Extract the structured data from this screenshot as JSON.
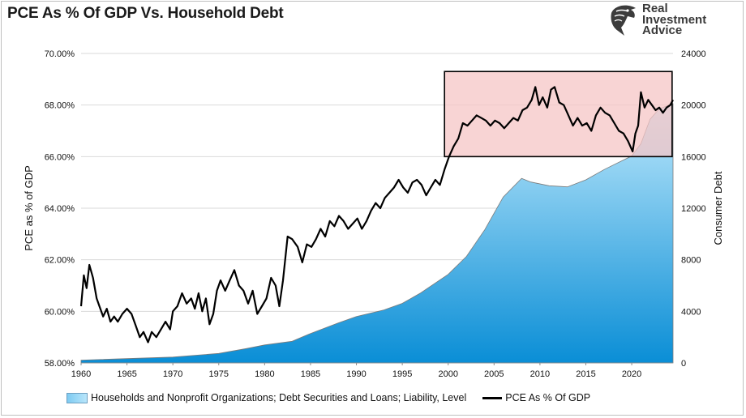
{
  "title": "PCE As % Of GDP Vs. Household Debt",
  "logo": {
    "icon": "eagle-head-icon",
    "lines": [
      "Real",
      "Investment",
      "Advice"
    ]
  },
  "chart_data": {
    "type": "line",
    "title": "PCE As % Of GDP Vs. Household Debt",
    "x_ticks": [
      "1960",
      "1965",
      "1970",
      "1975",
      "1980",
      "1985",
      "1990",
      "1995",
      "2000",
      "2005",
      "2010",
      "2015",
      "2020"
    ],
    "xlim": [
      1960,
      2024.5
    ],
    "left_axis": {
      "label": "PCE as % of GDP",
      "ylim": [
        58,
        70
      ],
      "ticks": [
        "58.00%",
        "60.00%",
        "62.00%",
        "64.00%",
        "66.00%",
        "68.00%",
        "70.00%"
      ],
      "tick_values": [
        58,
        60,
        62,
        64,
        66,
        68,
        70
      ]
    },
    "right_axis": {
      "label": "Consumer Debt",
      "ylim": [
        0,
        24000
      ],
      "ticks": [
        "0",
        "4000",
        "8000",
        "12000",
        "16000",
        "20000",
        "24000"
      ],
      "tick_values": [
        0,
        4000,
        8000,
        12000,
        16000,
        20000,
        24000
      ]
    },
    "grid": "horizontal",
    "legend_position": "bottom",
    "colors": {
      "area_top": "#b9e6fb",
      "area_bottom": "#0a8ed6",
      "line": "#000000",
      "highlight_fill": "#f5c6c6",
      "highlight_stroke": "#000000",
      "grid": "#d9d9d9"
    },
    "series": [
      {
        "name": "Households and Nonprofit Organizations; Debt Securities and Loans; Liability, Level",
        "kind": "area",
        "axis": "right",
        "points": [
          [
            1960,
            216
          ],
          [
            1965,
            331
          ],
          [
            1970,
            455
          ],
          [
            1975,
            734
          ],
          [
            1978,
            1112
          ],
          [
            1980,
            1396
          ],
          [
            1983,
            1680
          ],
          [
            1985,
            2283
          ],
          [
            1988,
            3090
          ],
          [
            1990,
            3602
          ],
          [
            1993,
            4110
          ],
          [
            1995,
            4620
          ],
          [
            1997,
            5430
          ],
          [
            2000,
            6870
          ],
          [
            2002,
            8260
          ],
          [
            2004,
            10350
          ],
          [
            2006,
            12870
          ],
          [
            2008,
            14310
          ],
          [
            2009,
            14030
          ],
          [
            2011,
            13740
          ],
          [
            2013,
            13650
          ],
          [
            2015,
            14200
          ],
          [
            2017,
            15000
          ],
          [
            2019,
            15700
          ],
          [
            2020,
            16050
          ],
          [
            2021,
            17000
          ],
          [
            2022,
            18900
          ],
          [
            2023,
            19700
          ],
          [
            2024.5,
            20100
          ]
        ]
      },
      {
        "name": "PCE As % Of GDP",
        "kind": "line",
        "axis": "left",
        "points": [
          [
            1960,
            60.2
          ],
          [
            1960.3,
            61.4
          ],
          [
            1960.6,
            60.9
          ],
          [
            1960.9,
            61.8
          ],
          [
            1961.3,
            61.3
          ],
          [
            1961.7,
            60.5
          ],
          [
            1962,
            60.2
          ],
          [
            1962.4,
            59.8
          ],
          [
            1962.8,
            60.1
          ],
          [
            1963.2,
            59.6
          ],
          [
            1963.6,
            59.8
          ],
          [
            1964,
            59.6
          ],
          [
            1964.5,
            59.9
          ],
          [
            1965,
            60.1
          ],
          [
            1965.5,
            59.9
          ],
          [
            1966,
            59.4
          ],
          [
            1966.4,
            59.0
          ],
          [
            1966.8,
            59.2
          ],
          [
            1967.3,
            58.8
          ],
          [
            1967.7,
            59.2
          ],
          [
            1968.2,
            59.0
          ],
          [
            1968.7,
            59.3
          ],
          [
            1969.2,
            59.6
          ],
          [
            1969.7,
            59.3
          ],
          [
            1970,
            60.0
          ],
          [
            1970.5,
            60.2
          ],
          [
            1971,
            60.7
          ],
          [
            1971.5,
            60.3
          ],
          [
            1972,
            60.5
          ],
          [
            1972.4,
            60.1
          ],
          [
            1972.8,
            60.7
          ],
          [
            1973.2,
            60.0
          ],
          [
            1973.6,
            60.5
          ],
          [
            1974,
            59.5
          ],
          [
            1974.4,
            59.9
          ],
          [
            1974.8,
            60.8
          ],
          [
            1975.2,
            61.2
          ],
          [
            1975.7,
            60.8
          ],
          [
            1976.2,
            61.2
          ],
          [
            1976.7,
            61.6
          ],
          [
            1977.2,
            61.0
          ],
          [
            1977.7,
            60.8
          ],
          [
            1978.2,
            60.3
          ],
          [
            1978.7,
            60.8
          ],
          [
            1979.2,
            59.9
          ],
          [
            1979.7,
            60.2
          ],
          [
            1980.2,
            60.5
          ],
          [
            1980.7,
            61.3
          ],
          [
            1981.2,
            61.0
          ],
          [
            1981.6,
            60.2
          ],
          [
            1982,
            61.2
          ],
          [
            1982.5,
            62.9
          ],
          [
            1983,
            62.8
          ],
          [
            1983.6,
            62.5
          ],
          [
            1984.1,
            61.9
          ],
          [
            1984.6,
            62.6
          ],
          [
            1985.1,
            62.5
          ],
          [
            1985.6,
            62.8
          ],
          [
            1986.1,
            63.2
          ],
          [
            1986.6,
            62.9
          ],
          [
            1987.1,
            63.5
          ],
          [
            1987.6,
            63.3
          ],
          [
            1988.1,
            63.7
          ],
          [
            1988.6,
            63.5
          ],
          [
            1989.1,
            63.2
          ],
          [
            1989.6,
            63.4
          ],
          [
            1990.1,
            63.6
          ],
          [
            1990.6,
            63.2
          ],
          [
            1991.1,
            63.5
          ],
          [
            1991.6,
            63.9
          ],
          [
            1992.1,
            64.2
          ],
          [
            1992.6,
            64.0
          ],
          [
            1993.1,
            64.4
          ],
          [
            1993.6,
            64.6
          ],
          [
            1994.1,
            64.8
          ],
          [
            1994.6,
            65.1
          ],
          [
            1995.1,
            64.8
          ],
          [
            1995.6,
            64.6
          ],
          [
            1996.1,
            65.0
          ],
          [
            1996.6,
            65.1
          ],
          [
            1997.1,
            64.9
          ],
          [
            1997.6,
            64.5
          ],
          [
            1998.1,
            64.8
          ],
          [
            1998.6,
            65.1
          ],
          [
            1999.1,
            64.9
          ],
          [
            1999.6,
            65.5
          ],
          [
            2000.1,
            66.0
          ],
          [
            2000.6,
            66.4
          ],
          [
            2001.1,
            66.7
          ],
          [
            2001.6,
            67.3
          ],
          [
            2002.1,
            67.2
          ],
          [
            2002.6,
            67.4
          ],
          [
            2003.1,
            67.6
          ],
          [
            2003.6,
            67.5
          ],
          [
            2004.1,
            67.4
          ],
          [
            2004.6,
            67.2
          ],
          [
            2005.1,
            67.4
          ],
          [
            2005.6,
            67.3
          ],
          [
            2006.1,
            67.1
          ],
          [
            2006.6,
            67.3
          ],
          [
            2007.1,
            67.5
          ],
          [
            2007.6,
            67.4
          ],
          [
            2008.1,
            67.8
          ],
          [
            2008.6,
            67.9
          ],
          [
            2009.1,
            68.2
          ],
          [
            2009.5,
            68.7
          ],
          [
            2009.9,
            68.0
          ],
          [
            2010.3,
            68.3
          ],
          [
            2010.8,
            67.9
          ],
          [
            2011.2,
            68.6
          ],
          [
            2011.6,
            68.7
          ],
          [
            2012.1,
            68.1
          ],
          [
            2012.6,
            68.0
          ],
          [
            2013.1,
            67.6
          ],
          [
            2013.6,
            67.2
          ],
          [
            2014.1,
            67.5
          ],
          [
            2014.6,
            67.2
          ],
          [
            2015.1,
            67.3
          ],
          [
            2015.6,
            67.0
          ],
          [
            2016.1,
            67.6
          ],
          [
            2016.6,
            67.9
          ],
          [
            2017.1,
            67.7
          ],
          [
            2017.6,
            67.6
          ],
          [
            2018.1,
            67.3
          ],
          [
            2018.6,
            67.0
          ],
          [
            2019.1,
            66.9
          ],
          [
            2019.6,
            66.6
          ],
          [
            2020.1,
            66.2
          ],
          [
            2020.4,
            66.9
          ],
          [
            2020.7,
            67.2
          ],
          [
            2021.0,
            68.5
          ],
          [
            2021.4,
            67.9
          ],
          [
            2021.8,
            68.2
          ],
          [
            2022.2,
            68.0
          ],
          [
            2022.6,
            67.8
          ],
          [
            2023.0,
            67.9
          ],
          [
            2023.4,
            67.7
          ],
          [
            2023.8,
            67.9
          ],
          [
            2024.2,
            68.0
          ],
          [
            2024.5,
            68.2
          ]
        ]
      }
    ],
    "highlight_box": {
      "x_range": [
        1999.6,
        2024.4
      ],
      "left_y_range": [
        66.0,
        69.3
      ]
    }
  }
}
